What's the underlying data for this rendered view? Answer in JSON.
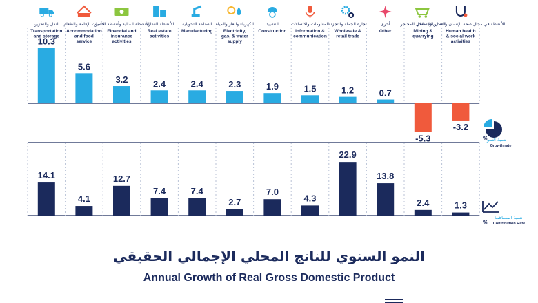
{
  "title_ar": "النمو السنوي للناتج المحلي الإجمالي الحقيقي",
  "title_en": "Annual Growth of Real Gross Domestic Product",
  "chart_data": {
    "type": "bar",
    "categories": [
      {
        "ar": "النقل والتخزين",
        "en": "Transportation and storage",
        "icon": "truck-icon"
      },
      {
        "ar": "خدمات الإقامة والطعام",
        "en": "Accommodation and food service",
        "icon": "hotel-icon"
      },
      {
        "ar": "الأنشطة المالية وأنشطة التأمين",
        "en": "Financial and insurance activities",
        "icon": "money-icon"
      },
      {
        "ar": "الأنشطة العقارية",
        "en": "Real estate activities",
        "icon": "buildings-icon"
      },
      {
        "ar": "الصناعة التحويلية",
        "en": "Manufacturing",
        "icon": "robot-arm-icon"
      },
      {
        "ar": "الكهرباء والغاز والمياه",
        "en": "Electricity, gas, & water supply",
        "icon": "bulb-drop-icon"
      },
      {
        "ar": "التشييد",
        "en": "Construction",
        "icon": "worker-icon"
      },
      {
        "ar": "المعلومات والاتصالات",
        "en": "Information & communication",
        "icon": "microphone-icon"
      },
      {
        "ar": "تجارة الجملة والتجزئة",
        "en": "Wholesale & retail trade",
        "icon": "gears-icon"
      },
      {
        "ar": "أخرى",
        "en": "Other",
        "icon": "star-icon"
      },
      {
        "ar": "التعدين واستغلال المحاجر",
        "en": "Mining & quarrying",
        "icon": "cart-icon"
      },
      {
        "ar": "الأنشطة في مجال صحة الإنسان والعمل الاجتماعي",
        "en": "Human health & social work activities",
        "icon": "stethoscope-icon"
      }
    ],
    "series": [
      {
        "name": "Growth rate",
        "name_ar": "نسبة النمو",
        "unit": "%",
        "color": "#29abe2",
        "negative_color": "#f05a3c",
        "values": [
          10.3,
          5.6,
          3.2,
          2.4,
          2.4,
          2.3,
          1.9,
          1.5,
          1.2,
          0.7,
          -5.3,
          -3.2
        ]
      },
      {
        "name": "Contribution Rate",
        "name_ar": "نسبة المساهمة",
        "unit": "%",
        "color": "#1b2a5c",
        "values": [
          14.1,
          4.1,
          12.7,
          7.4,
          7.4,
          2.7,
          7.0,
          4.3,
          22.9,
          13.8,
          2.4,
          1.3
        ]
      }
    ],
    "value_labels": {
      "growth": [
        "10.3",
        "5.6",
        "3.2",
        "2.4",
        "2.4",
        "2.3",
        "1.9",
        "1.5",
        "1.2",
        "0.7",
        "-5.3",
        "-3.2"
      ],
      "contribution": [
        "14.1",
        "4.1",
        "12.7",
        "7.4",
        "7.4",
        "2.7",
        "7.0",
        "4.3",
        "22.9",
        "13.8",
        "2.4",
        "1.3"
      ]
    },
    "legend": {
      "growth_ar": "نسبة النمو",
      "growth_en": "Growth rate",
      "growth_unit": "%",
      "contribution_ar": "نسبة المساهمة",
      "contribution_en": "Contribution Rate",
      "contribution_unit": "%"
    }
  }
}
